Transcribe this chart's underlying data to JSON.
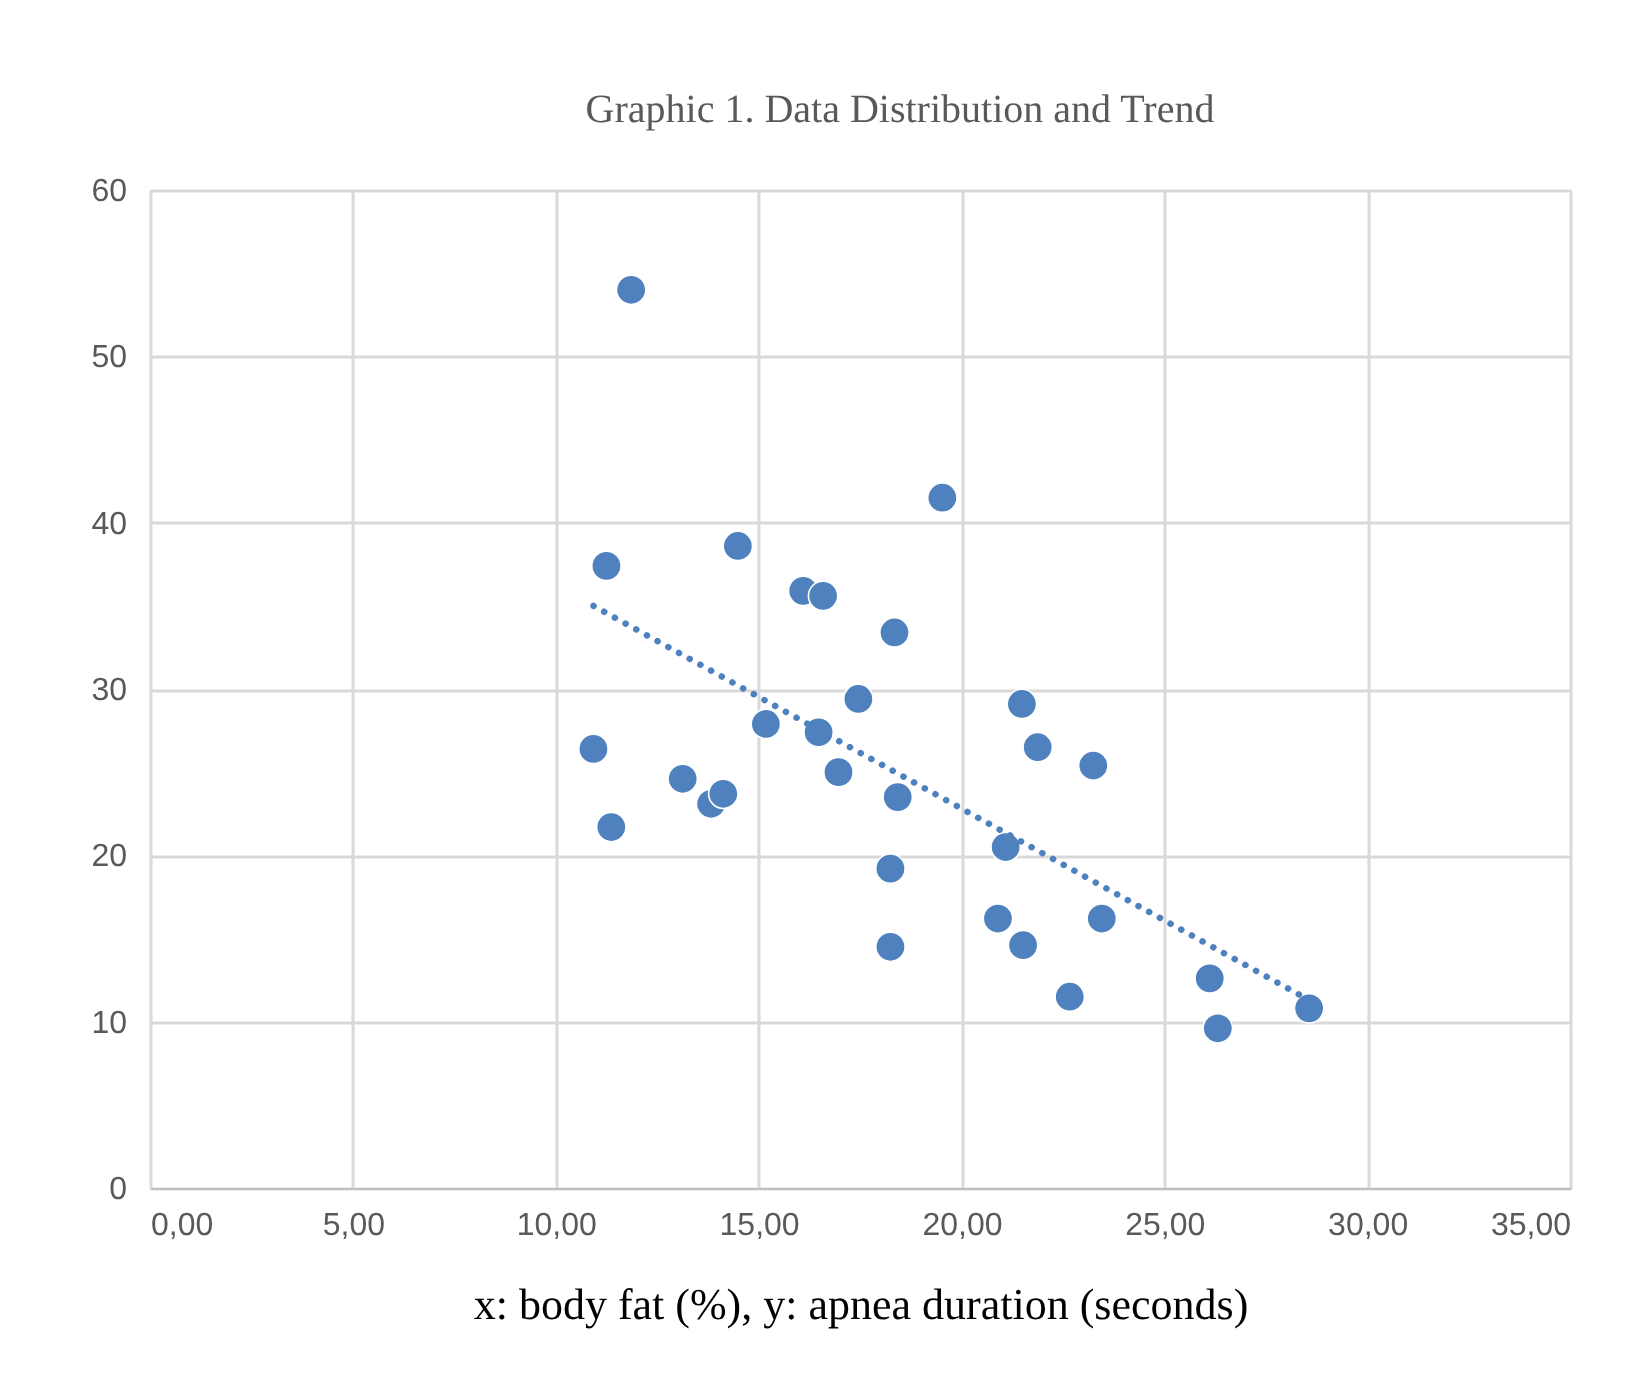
{
  "chart_data": {
    "type": "scatter",
    "title": "Graphic 1. Data Distribution and Trend",
    "xlabel": "x: body fat (%), y: apnea duration (seconds)",
    "xlim": [
      0,
      35
    ],
    "xticks": [
      {
        "value": 0,
        "label": "0,00"
      },
      {
        "value": 5,
        "label": "5,00"
      },
      {
        "value": 10,
        "label": "10,00"
      },
      {
        "value": 15,
        "label": "15,00"
      },
      {
        "value": 20,
        "label": "20,00"
      },
      {
        "value": 25,
        "label": "25,00"
      },
      {
        "value": 30,
        "label": "30,00"
      },
      {
        "value": 35,
        "label": "35,00"
      }
    ],
    "ylim": [
      0,
      60
    ],
    "yticks": [
      0,
      10,
      20,
      30,
      40,
      50,
      60
    ],
    "grid": true,
    "marker": "circle",
    "series": [
      {
        "color": "#4e81bd",
        "x": [
          11.86,
          11.25,
          10.93,
          11.37,
          13.13,
          13.83,
          14.13,
          14.49,
          15.18,
          16.1,
          16.59,
          18.35,
          19.53,
          17.46,
          16.48,
          16.97,
          18.43,
          18.25,
          21.49,
          21.88,
          21.09,
          18.25,
          20.9,
          21.52,
          23.25,
          23.46,
          22.67,
          26.12,
          26.32,
          28.57
        ],
        "values": [
          54.0,
          37.4,
          26.4,
          21.7,
          24.6,
          23.1,
          23.7,
          38.6,
          27.9,
          35.9,
          35.6,
          33.4,
          41.5,
          29.4,
          27.4,
          25.0,
          23.5,
          19.2,
          29.1,
          26.5,
          20.5,
          14.5,
          16.2,
          14.6,
          25.4,
          16.2,
          11.5,
          12.6,
          9.6,
          10.8
        ]
      },
      {
        "type": "line",
        "color": "#4e81bd",
        "line_style": "dotted",
        "marker": "none",
        "x": [
          10.93,
          28.57
        ],
        "values": [
          35.0,
          11.3
        ]
      }
    ]
  }
}
